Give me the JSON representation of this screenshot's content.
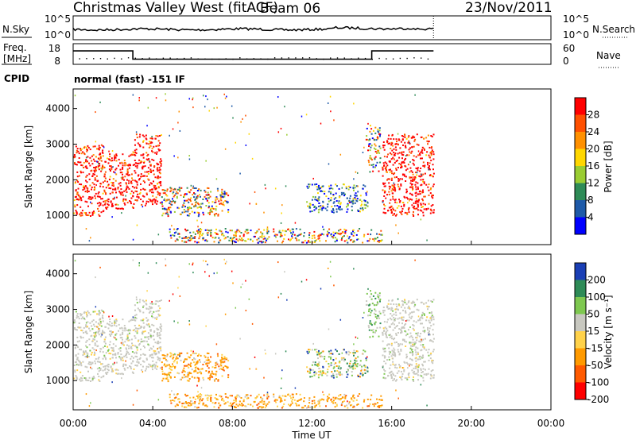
{
  "header": {
    "station": "Christmas Valley West (fitACF)",
    "beam": "Beam 06",
    "date": "23/Nov/2011",
    "cpid_label": "CPID",
    "cpid_text": "normal (fast) -151 IF"
  },
  "noise_panel": {
    "left_label": "N.Sky",
    "right_label": "N.Search",
    "left_ticks": [
      "10^5",
      "10^0"
    ],
    "right_ticks": [
      "10^5",
      "10^0"
    ]
  },
  "freq_panel": {
    "left_label_1": "Freq.",
    "left_label_2": "[MHz]",
    "right_label": "Nave",
    "left_ticks": [
      "18",
      "8"
    ],
    "right_ticks": [
      "60",
      "0"
    ],
    "freq_series_mhz": [
      [
        0.0,
        14.5
      ],
      [
        3.0,
        14.5
      ],
      [
        3.0,
        10.5
      ],
      [
        15.0,
        10.5
      ],
      [
        15.0,
        14.5
      ],
      [
        18.1,
        14.5
      ]
    ]
  },
  "power_colorbar": {
    "title": "Power [dB]",
    "labels": [
      "28",
      "24",
      "20",
      "16",
      "12",
      "8",
      "4"
    ],
    "colors": [
      "#ff0000",
      "#ff5000",
      "#ff9000",
      "#ffd700",
      "#9acd32",
      "#2e8b57",
      "#1e5aa8",
      "#0000ff"
    ]
  },
  "velocity_colorbar": {
    "title": "Velocity [m s⁻¹]",
    "labels": [
      "200",
      "100",
      "50",
      "15",
      "-15",
      "-50",
      "-100",
      "-200"
    ],
    "colors": [
      "#1a3fb5",
      "#2e8b57",
      "#7ec850",
      "#c8c8c0",
      "#ffd24a",
      "#ff9a00",
      "#ff5a00",
      "#ff0000"
    ]
  },
  "chart_data": {
    "type": "heatmap",
    "xlabel": "Time UT",
    "ylabel": "Slant Range [km]",
    "x_ticks": [
      "00:00",
      "04:00",
      "08:00",
      "12:00",
      "16:00",
      "20:00",
      "00:00"
    ],
    "y_ticks": [
      "4000",
      "3000",
      "2000",
      "1000"
    ],
    "xlim_hours": [
      0,
      24
    ],
    "ylim_km": [
      180,
      4550
    ],
    "data_end_hour": 18.1,
    "scatter_regions": [
      {
        "t0": 0.0,
        "t1": 1.5,
        "r0": 1000,
        "r1": 3000,
        "power": "high",
        "velocity": "low"
      },
      {
        "t0": 1.5,
        "t1": 3.0,
        "r0": 1200,
        "r1": 2800,
        "power": "high",
        "velocity": "low"
      },
      {
        "t0": 3.0,
        "t1": 4.4,
        "r0": 1300,
        "r1": 3300,
        "power": "high",
        "velocity": "low"
      },
      {
        "t0": 4.4,
        "t1": 7.8,
        "r0": 1000,
        "r1": 1800,
        "power": "medium",
        "velocity": "negative"
      },
      {
        "t0": 4.8,
        "t1": 15.5,
        "r0": 250,
        "r1": 650,
        "power": "medium",
        "velocity": "negative"
      },
      {
        "t0": 11.7,
        "t1": 14.8,
        "r0": 1100,
        "r1": 1900,
        "power": "low",
        "velocity": "mixed"
      },
      {
        "t0": 14.7,
        "t1": 15.4,
        "r0": 2200,
        "r1": 3600,
        "power": "medium",
        "velocity": "positive"
      },
      {
        "t0": 15.5,
        "t1": 18.1,
        "r0": 1000,
        "r1": 3300,
        "power": "high",
        "velocity": "low"
      }
    ]
  }
}
